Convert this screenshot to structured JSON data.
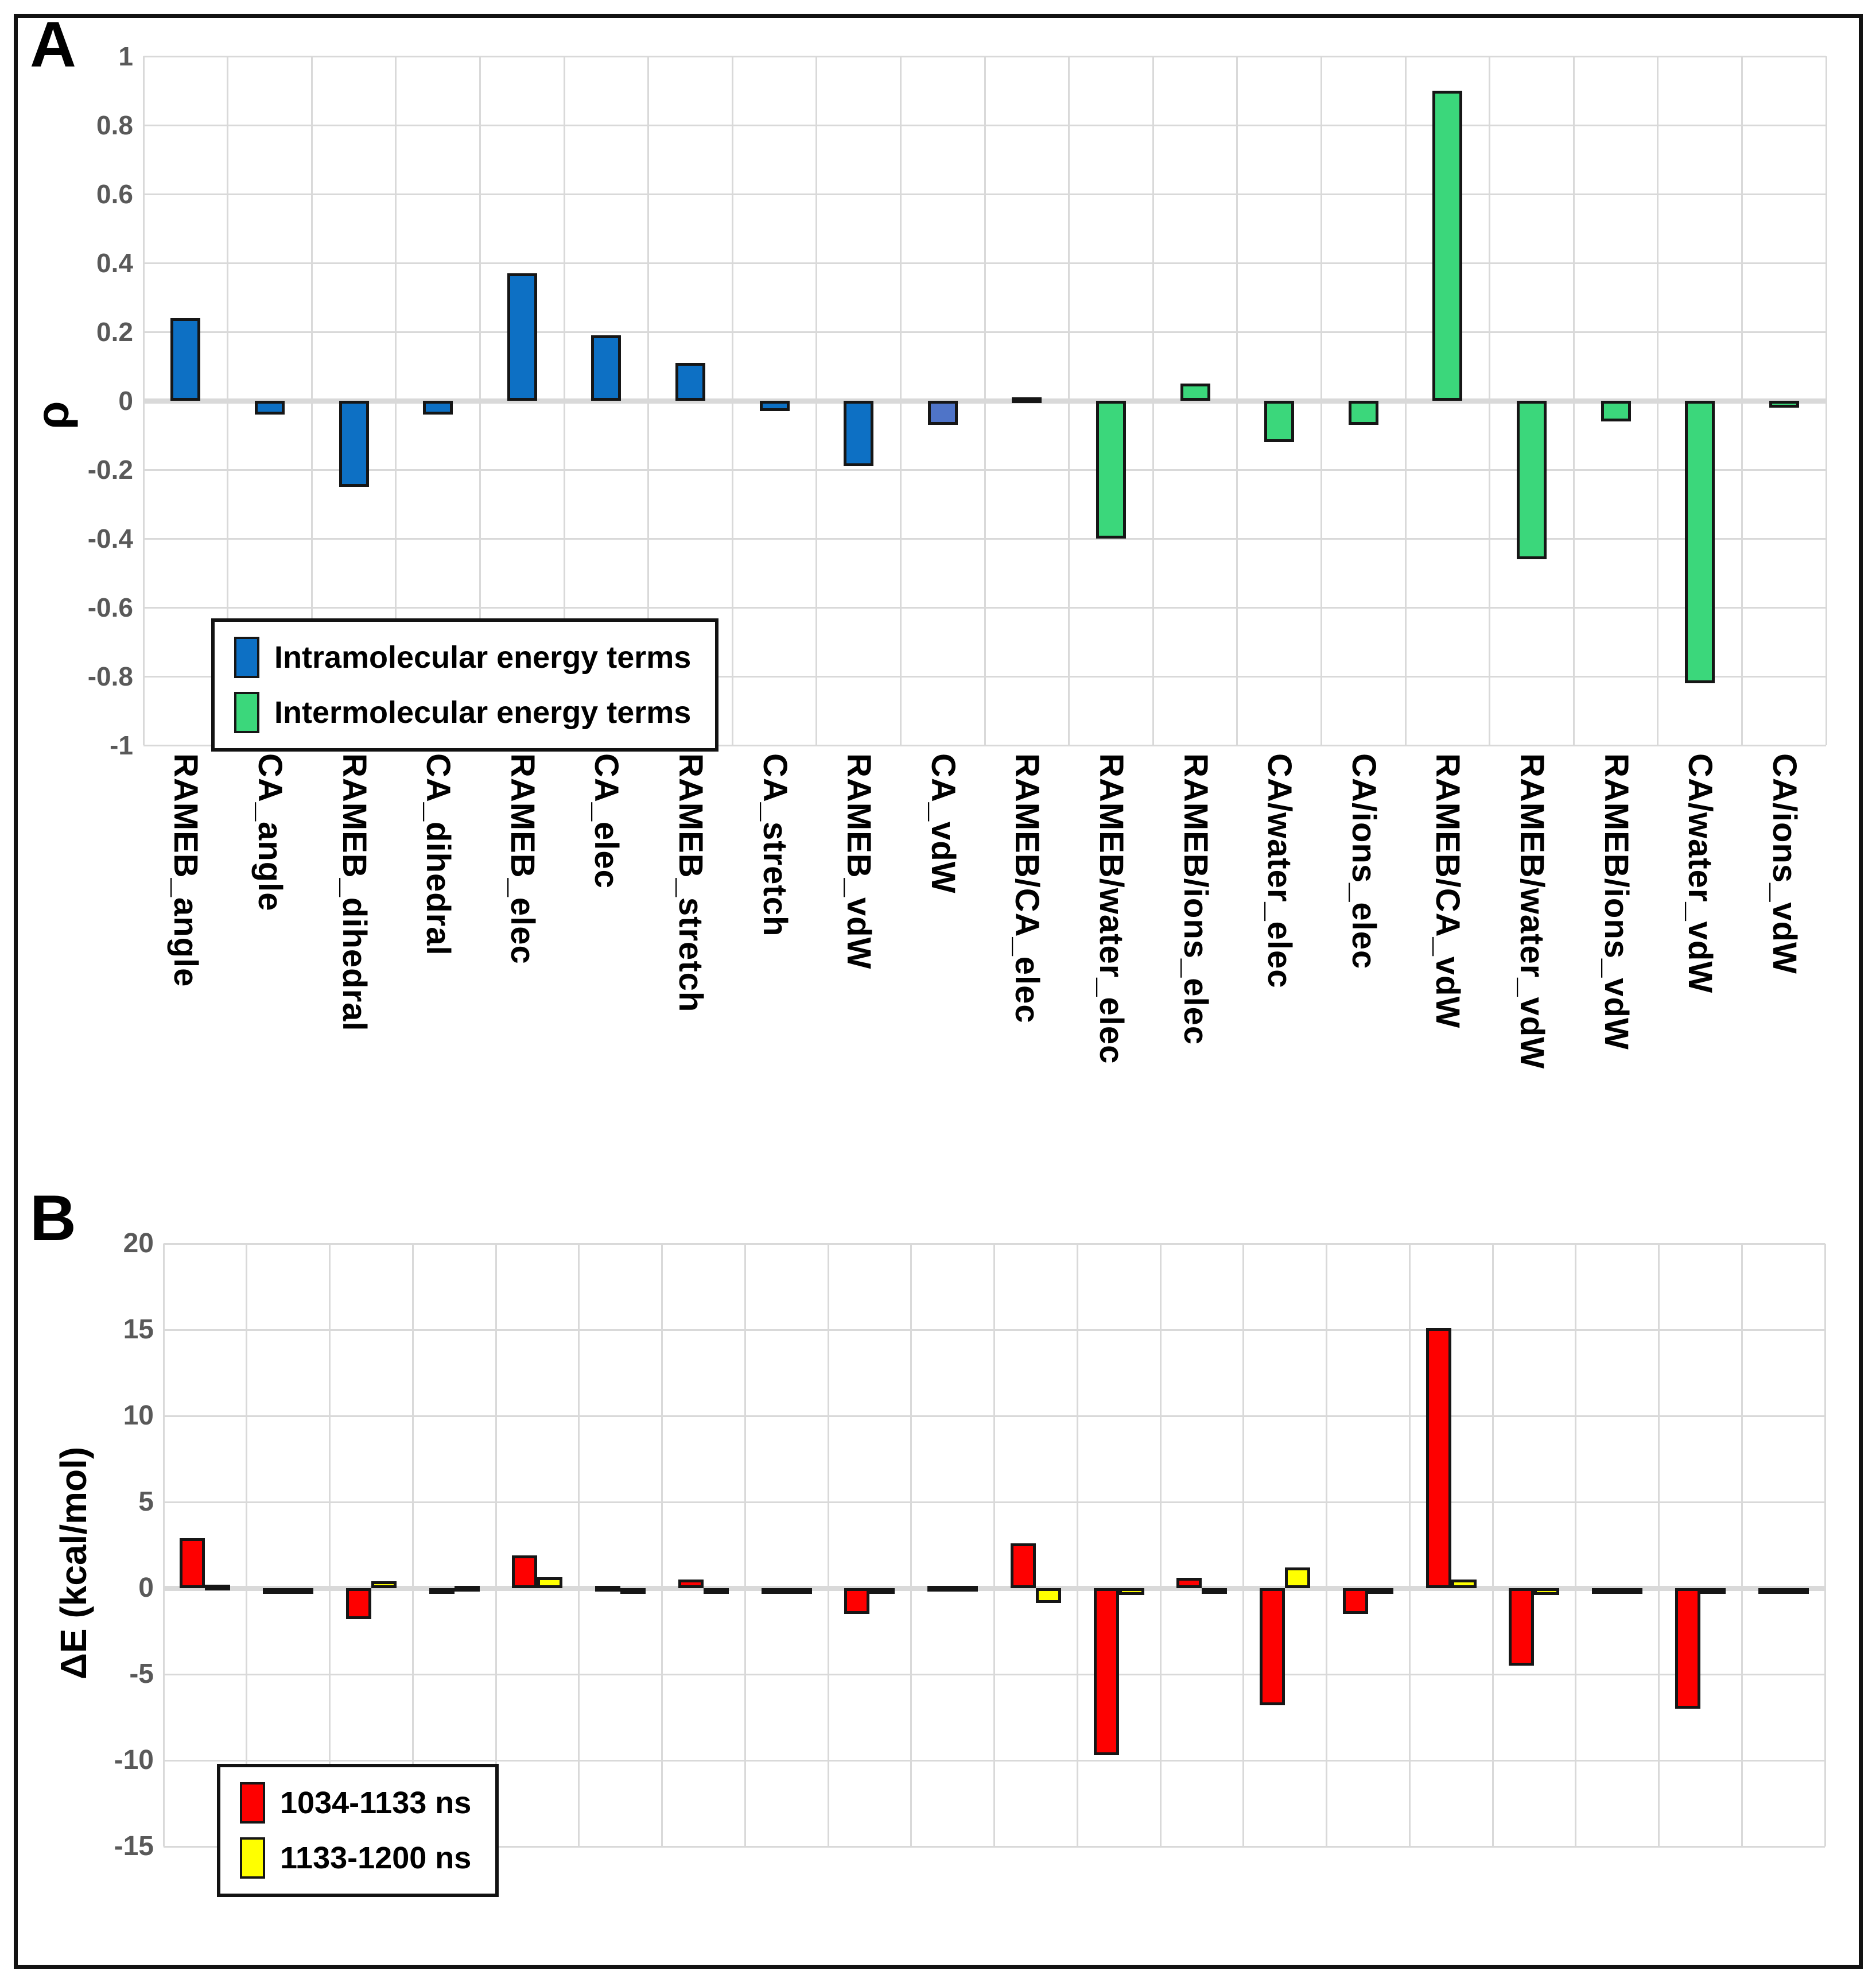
{
  "figure": {
    "background": "#ffffff",
    "border_color": "#121212",
    "grid_color": "#d9d9d9",
    "tick_text_color": "#595959"
  },
  "chart_data": [
    {
      "type": "bar",
      "panel_label": "A",
      "ylabel": "ρ",
      "ylim": [
        -1,
        1
      ],
      "ytick_step": 0.2,
      "ytick_labels": [
        "1",
        "0.8",
        "0.6",
        "0.4",
        "0.2",
        "0",
        "-0.2",
        "-0.4",
        "-0.6",
        "-0.8",
        "-1"
      ],
      "grid": true,
      "legend_position": "inside-bottom-left",
      "categories": [
        "RAMEB_angle",
        "CA_angle",
        "RAMEB_dihedral",
        "CA_dihedral",
        "RAMEB_elec",
        "CA_elec",
        "RAMEB_stretch",
        "CA_stretch",
        "RAMEB_vdW",
        "CA_vdW",
        "RAMEB/CA_elec",
        "RAMEB/water_elec",
        "RAMEB/ions_elec",
        "CA/water_elec",
        "CA/ions_elec",
        "RAMEB/CA_vdW",
        "RAMEB/water_vdW",
        "RAMEB/ions_vdW",
        "CA/water_vdW",
        "CA/ions_vdW"
      ],
      "series": [
        {
          "name": "Intramolecular energy terms",
          "color": "#0d70c4",
          "values": [
            0.24,
            -0.04,
            -0.25,
            -0.04,
            0.37,
            0.19,
            0.11,
            -0.03,
            -0.19,
            -0.07,
            null,
            null,
            null,
            null,
            null,
            null,
            null,
            null,
            null,
            null
          ]
        },
        {
          "name": "Intermolecular energy terms",
          "color": "#3bd77b",
          "values": [
            null,
            null,
            null,
            null,
            null,
            null,
            null,
            null,
            null,
            null,
            0.01,
            -0.4,
            0.05,
            -0.12,
            -0.07,
            0.9,
            -0.46,
            -0.06,
            -0.82,
            -0.02
          ]
        }
      ],
      "value_colors": {
        "9": "#4f74c8"
      }
    },
    {
      "type": "bar",
      "panel_label": "B",
      "ylabel": "ΔE (kcal/mol)",
      "ylim": [
        -15,
        20
      ],
      "ytick_step": 5,
      "ytick_labels": [
        "20",
        "15",
        "10",
        "5",
        "0",
        "-5",
        "-10",
        "-15"
      ],
      "grid": true,
      "legend_position": "inside-bottom-left",
      "categories": [
        "RAMEB_angle",
        "CA_angle",
        "RAMEB_dihedral",
        "CA_dihedral",
        "RAMEB_elec",
        "CA_elec",
        "RAMEB_stretch",
        "CA_stretch",
        "RAMEB_vdW",
        "CA_vdW",
        "RAMEB/CA_elec",
        "RAMEB/water_elec",
        "RAMEB/ions_elec",
        "CA/water_elec",
        "CA/ions_elec",
        "RAMEB/CA_vdW",
        "RAMEB/water_vdW",
        "RAMEB/ions_vdW",
        "CA/water_vdW",
        "CA/ions_vdW"
      ],
      "series": [
        {
          "name": "1034-1133 ns",
          "color": "#fe0000",
          "values": [
            2.9,
            -0.15,
            -1.8,
            -0.05,
            1.9,
            0.05,
            0.5,
            -0.1,
            -1.5,
            0.05,
            2.6,
            -9.7,
            0.6,
            -6.8,
            -1.5,
            15.1,
            -4.5,
            -0.1,
            -7.0,
            -0.05
          ]
        },
        {
          "name": "1133-1200 ns",
          "color": "#ffff00",
          "values": [
            0.2,
            -0.05,
            0.4,
            0.1,
            0.65,
            -0.05,
            -0.05,
            -0.15,
            -0.2,
            0.1,
            -0.85,
            -0.4,
            -0.2,
            1.2,
            -0.25,
            0.5,
            -0.4,
            -0.2,
            -0.3,
            -0.05
          ]
        }
      ]
    }
  ]
}
